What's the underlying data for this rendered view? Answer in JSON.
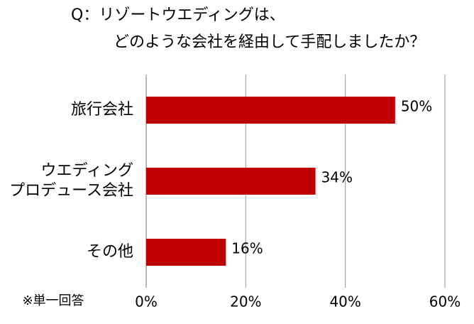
{
  "chart_data": {
    "type": "bar",
    "orientation": "horizontal",
    "title": [
      "Q：リゾートウエディングは、",
      "どのような会社を経由して手配しましたか？"
    ],
    "categories": [
      "旅行会社",
      "ウエディング\nプロデュース会社",
      "その他"
    ],
    "values": [
      50,
      34,
      16
    ],
    "value_labels": [
      "50%",
      "34%",
      "16%"
    ],
    "color": "#c00000",
    "xlim": [
      0,
      60
    ],
    "xticks": [
      {
        "value": 0,
        "label": "0%"
      },
      {
        "value": 20,
        "label": "20%"
      },
      {
        "value": 40,
        "label": "40%"
      },
      {
        "value": 60,
        "label": "60%"
      }
    ],
    "grid": true,
    "note": "※単一回答"
  }
}
